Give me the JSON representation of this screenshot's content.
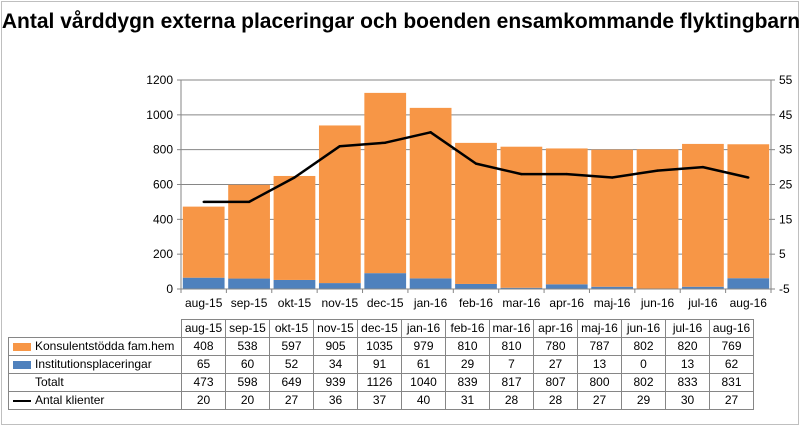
{
  "chart_data": {
    "type": "bar",
    "stacked": true,
    "title": "Antal vårddygn externa placeringar och boenden ensamkommande flyktingbarn",
    "categories": [
      "aug-15",
      "sep-15",
      "okt-15",
      "nov-15",
      "dec-15",
      "jan-16",
      "feb-16",
      "mar-16",
      "apr-16",
      "maj-16",
      "jun-16",
      "jul-16",
      "aug-16"
    ],
    "series": [
      {
        "name": "Konsulentstödda fam.hem",
        "type": "bar",
        "axis": "left",
        "color": "#F79646",
        "values": [
          408,
          538,
          597,
          905,
          1035,
          979,
          810,
          810,
          780,
          787,
          802,
          820,
          769
        ]
      },
      {
        "name": "Institutionsplaceringar",
        "type": "bar",
        "axis": "left",
        "color": "#4F81BD",
        "values": [
          65,
          60,
          52,
          34,
          91,
          61,
          29,
          7,
          27,
          13,
          0,
          13,
          62
        ]
      },
      {
        "name": "Totalt",
        "type": "table-only",
        "values": [
          473,
          598,
          649,
          939,
          1126,
          1040,
          839,
          817,
          807,
          800,
          802,
          833,
          831
        ]
      },
      {
        "name": "Antal klienter",
        "type": "line",
        "axis": "right",
        "color": "#000000",
        "values": [
          20,
          20,
          27,
          36,
          37,
          40,
          31,
          28,
          28,
          27,
          29,
          30,
          27
        ]
      }
    ],
    "y_left": {
      "min": 0,
      "max": 1200,
      "step": 200,
      "ticks": [
        "0",
        "200",
        "400",
        "600",
        "800",
        "1000",
        "1200"
      ]
    },
    "y_right": {
      "min": -5,
      "max": 55,
      "step": 10,
      "ticks": [
        "-5",
        "5",
        "15",
        "25",
        "35",
        "45",
        "55"
      ]
    },
    "grid": true,
    "legend": "data-table-below"
  }
}
